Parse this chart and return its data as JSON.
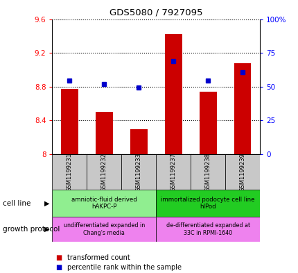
{
  "title": "GDS5080 / 7927095",
  "categories": [
    "GSM1199231",
    "GSM1199232",
    "GSM1199233",
    "GSM1199237",
    "GSM1199238",
    "GSM1199239"
  ],
  "bar_values": [
    8.77,
    8.5,
    8.3,
    9.42,
    8.74,
    9.08
  ],
  "bar_bottom": 8.0,
  "dot_values_left": [
    8.87,
    8.83,
    8.79,
    9.1,
    8.87,
    8.97
  ],
  "ylim_left": [
    8.0,
    9.6
  ],
  "ylim_right": [
    0,
    100
  ],
  "yticks_left": [
    8.0,
    8.4,
    8.8,
    9.2,
    9.6
  ],
  "ytick_labels_left": [
    "8",
    "8.4",
    "8.8",
    "9.2",
    "9.6"
  ],
  "yticks_right": [
    0,
    25,
    50,
    75,
    100
  ],
  "ytick_labels_right": [
    "0",
    "25",
    "50",
    "75",
    "100%"
  ],
  "bar_color": "#cc0000",
  "dot_color": "#0000cc",
  "cell_line_groups": [
    {
      "label": "amniotic-fluid derived\nhAKPC-P",
      "start": 0,
      "end": 3,
      "color": "#90ee90"
    },
    {
      "label": "immortalized podocyte cell line\nhIPod",
      "start": 3,
      "end": 6,
      "color": "#22cc22"
    }
  ],
  "growth_protocol_groups": [
    {
      "label": "undifferentiated expanded in\nChang's media",
      "start": 0,
      "end": 3,
      "color": "#ee82ee"
    },
    {
      "label": "de-differentiated expanded at\n33C in RPMI-1640",
      "start": 3,
      "end": 6,
      "color": "#ee82ee"
    }
  ],
  "legend_items": [
    {
      "color": "#cc0000",
      "label": "transformed count"
    },
    {
      "color": "#0000cc",
      "label": "percentile rank within the sample"
    }
  ],
  "cell_line_label": "cell line",
  "growth_protocol_label": "growth protocol",
  "sample_bg_color": "#c8c8c8",
  "gridline_color": "#000000"
}
